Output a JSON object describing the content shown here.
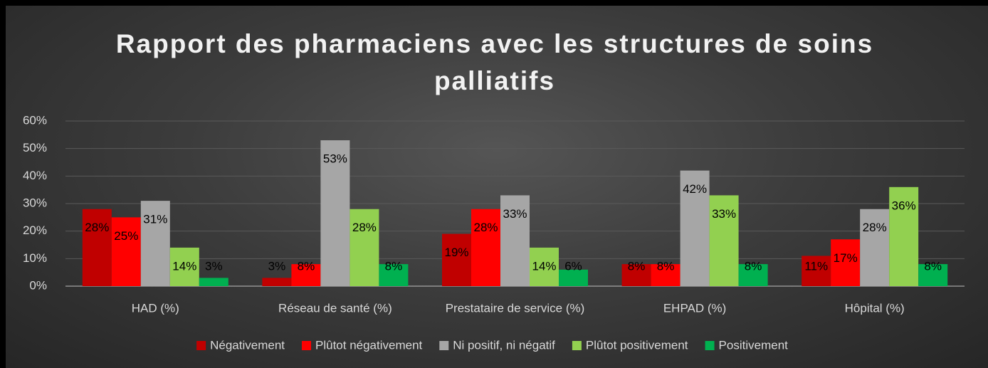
{
  "chart_data": {
    "type": "bar",
    "title": "Rapport des pharmaciens avec les structures de soins palliatifs",
    "categories": [
      "HAD (%)",
      "Réseau de santé (%)",
      "Prestataire de service (%)",
      "EHPAD (%)",
      "Hôpital (%)"
    ],
    "series": [
      {
        "name": "Négativement",
        "color": "#c00000",
        "values": [
          28,
          3,
          19,
          8,
          11
        ],
        "value_labels": [
          "28%",
          "3%",
          "19%",
          "8%",
          "11%"
        ]
      },
      {
        "name": "Plûtot négativement",
        "color": "#ff0000",
        "values": [
          25,
          8,
          28,
          8,
          17
        ],
        "value_labels": [
          "25%",
          "8%",
          "28%",
          "8%",
          "17%"
        ]
      },
      {
        "name": "Ni positif, ni négatif",
        "color": "#a6a6a6",
        "values": [
          31,
          53,
          33,
          42,
          28
        ],
        "value_labels": [
          "31%",
          "53%",
          "33%",
          "42%",
          "28%"
        ]
      },
      {
        "name": "Plûtot positivement",
        "color": "#92d050",
        "values": [
          14,
          28,
          14,
          33,
          36
        ],
        "value_labels": [
          "14%",
          "28%",
          "14%",
          "33%",
          "36%"
        ]
      },
      {
        "name": "Positivement",
        "color": "#00b050",
        "values": [
          3,
          8,
          6,
          8,
          8
        ],
        "value_labels": [
          "3%",
          "8%",
          "6%",
          "8%",
          "8%"
        ]
      }
    ],
    "ylim": [
      0,
      60
    ],
    "yticks": [
      {
        "value": 0,
        "label": "0%"
      },
      {
        "value": 10,
        "label": "10%"
      },
      {
        "value": 20,
        "label": "20%"
      },
      {
        "value": 30,
        "label": "30%"
      },
      {
        "value": 40,
        "label": "40%"
      },
      {
        "value": 50,
        "label": "50%"
      },
      {
        "value": 60,
        "label": "60%"
      }
    ],
    "grid": true,
    "legend": "bottom"
  }
}
